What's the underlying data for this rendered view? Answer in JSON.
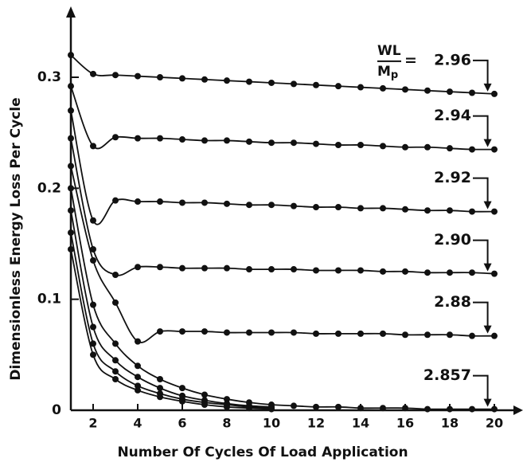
{
  "chart_data": {
    "type": "line",
    "y_label": "Dimensionless Energy Loss Per Cycle",
    "x_label": "Number Of Cycles Of Load Application",
    "annotation": {
      "numerator": "WL",
      "denominator": "M",
      "subscript": "p",
      "sign": "="
    },
    "x": [
      1,
      2,
      3,
      4,
      5,
      6,
      7,
      8,
      9,
      10,
      11,
      12,
      13,
      14,
      15,
      16,
      17,
      18,
      19,
      20
    ],
    "xlim": [
      1,
      20
    ],
    "xticks": [
      2,
      4,
      6,
      8,
      10,
      12,
      14,
      16,
      18,
      20
    ],
    "ylim": [
      0,
      0.3
    ],
    "yticks": [
      0,
      0.1,
      0.2,
      0.3
    ],
    "color": "#111111",
    "series": [
      {
        "name": "2.96",
        "values": [
          0.32,
          0.303,
          0.302,
          0.301,
          0.3,
          0.299,
          0.298,
          0.297,
          0.296,
          0.295,
          0.294,
          0.293,
          0.292,
          0.291,
          0.29,
          0.289,
          0.288,
          0.287,
          0.286,
          0.285
        ]
      },
      {
        "name": "2.94",
        "values": [
          0.292,
          0.238,
          0.246,
          0.245,
          0.245,
          0.244,
          0.243,
          0.243,
          0.242,
          0.241,
          0.241,
          0.24,
          0.239,
          0.239,
          0.238,
          0.237,
          0.237,
          0.236,
          0.235,
          0.235
        ]
      },
      {
        "name": "2.92",
        "values": [
          0.27,
          0.171,
          0.189,
          0.188,
          0.188,
          0.187,
          0.187,
          0.186,
          0.185,
          0.185,
          0.184,
          0.183,
          0.183,
          0.182,
          0.182,
          0.181,
          0.18,
          0.18,
          0.179,
          0.179
        ]
      },
      {
        "name": "2.90",
        "values": [
          0.245,
          0.145,
          0.122,
          0.129,
          0.129,
          0.128,
          0.128,
          0.128,
          0.127,
          0.127,
          0.127,
          0.126,
          0.126,
          0.126,
          0.125,
          0.125,
          0.124,
          0.124,
          0.124,
          0.123
        ]
      },
      {
        "name": "2.88",
        "values": [
          0.22,
          0.135,
          0.097,
          0.062,
          0.071,
          0.071,
          0.071,
          0.07,
          0.07,
          0.07,
          0.07,
          0.069,
          0.069,
          0.069,
          0.069,
          0.068,
          0.068,
          0.068,
          0.067,
          0.067
        ]
      },
      {
        "name": "2.857",
        "values": [
          0.2,
          0.095,
          0.06,
          0.04,
          0.028,
          0.02,
          0.014,
          0.01,
          0.007,
          0.005,
          0.004,
          0.003,
          0.003,
          0.002,
          0.002,
          0.002,
          0.001,
          0.001,
          0.001,
          0.001
        ]
      },
      {
        "values": [
          0.18,
          0.075,
          0.045,
          0.03,
          0.02,
          0.013,
          0.009,
          0.006,
          0.004,
          0.003,
          null,
          null,
          null,
          null,
          null,
          null,
          null,
          null,
          null,
          null
        ]
      },
      {
        "values": [
          0.16,
          0.06,
          0.035,
          0.022,
          0.015,
          0.01,
          0.007,
          0.005,
          0.003,
          0.002,
          null,
          null,
          null,
          null,
          null,
          null,
          null,
          null,
          null,
          null
        ]
      },
      {
        "values": [
          0.145,
          0.05,
          0.028,
          0.018,
          0.012,
          0.008,
          0.005,
          0.003,
          0.002,
          0.001,
          null,
          null,
          null,
          null,
          null,
          null,
          null,
          null,
          null,
          null
        ]
      }
    ]
  }
}
